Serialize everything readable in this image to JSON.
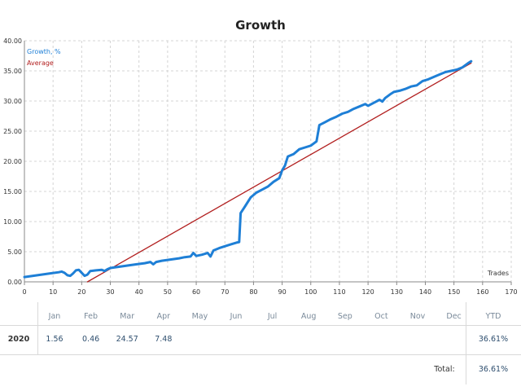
{
  "chart_data": {
    "type": "line",
    "title": "Growth",
    "xlabel": "Trades",
    "ylabel": "",
    "xlim": [
      0,
      170
    ],
    "ylim": [
      0,
      40
    ],
    "x_ticks": [
      "0",
      "10",
      "20",
      "30",
      "40",
      "50",
      "60",
      "70",
      "80",
      "90",
      "100",
      "110",
      "120",
      "130",
      "140",
      "150",
      "160",
      "170"
    ],
    "y_ticks": [
      "0.00",
      "5.00",
      "10.00",
      "15.00",
      "20.00",
      "25.00",
      "30.00",
      "35.00",
      "40.00"
    ],
    "grid": true,
    "legend_position": "top-left",
    "series": [
      {
        "name": "Growth, %",
        "color": "#1e7fd6",
        "points": [
          [
            0,
            0.8
          ],
          [
            3,
            1.0
          ],
          [
            6,
            1.2
          ],
          [
            9,
            1.4
          ],
          [
            12,
            1.6
          ],
          [
            13,
            1.7
          ],
          [
            14,
            1.5
          ],
          [
            15,
            1.1
          ],
          [
            16,
            1.0
          ],
          [
            17,
            1.4
          ],
          [
            18,
            1.9
          ],
          [
            19,
            2.0
          ],
          [
            20,
            1.5
          ],
          [
            21,
            1.0
          ],
          [
            22,
            1.2
          ],
          [
            23,
            1.8
          ],
          [
            25,
            1.9
          ],
          [
            27,
            2.0
          ],
          [
            28,
            1.8
          ],
          [
            29,
            2.1
          ],
          [
            30,
            2.3
          ],
          [
            33,
            2.5
          ],
          [
            36,
            2.7
          ],
          [
            39,
            2.9
          ],
          [
            42,
            3.1
          ],
          [
            44,
            3.3
          ],
          [
            45,
            2.9
          ],
          [
            46,
            3.3
          ],
          [
            48,
            3.5
          ],
          [
            51,
            3.7
          ],
          [
            54,
            3.9
          ],
          [
            56,
            4.1
          ],
          [
            58,
            4.2
          ],
          [
            59,
            4.8
          ],
          [
            60,
            4.3
          ],
          [
            62,
            4.5
          ],
          [
            64,
            4.8
          ],
          [
            65,
            4.2
          ],
          [
            66,
            5.2
          ],
          [
            68,
            5.6
          ],
          [
            70,
            5.9
          ],
          [
            72,
            6.2
          ],
          [
            74,
            6.5
          ],
          [
            75,
            6.6
          ],
          [
            75.5,
            11.4
          ],
          [
            77,
            12.5
          ],
          [
            79,
            14.0
          ],
          [
            81,
            14.8
          ],
          [
            83,
            15.3
          ],
          [
            85,
            15.8
          ],
          [
            87,
            16.6
          ],
          [
            89,
            17.2
          ],
          [
            90,
            18.5
          ],
          [
            91,
            19.3
          ],
          [
            92,
            20.8
          ],
          [
            94,
            21.2
          ],
          [
            96,
            22.0
          ],
          [
            98,
            22.3
          ],
          [
            100,
            22.6
          ],
          [
            102,
            23.3
          ],
          [
            103,
            26.0
          ],
          [
            105,
            26.5
          ],
          [
            107,
            27.0
          ],
          [
            109,
            27.4
          ],
          [
            111,
            27.9
          ],
          [
            113,
            28.2
          ],
          [
            115,
            28.7
          ],
          [
            117,
            29.1
          ],
          [
            119,
            29.5
          ],
          [
            120,
            29.2
          ],
          [
            122,
            29.7
          ],
          [
            124,
            30.2
          ],
          [
            125,
            29.9
          ],
          [
            126,
            30.5
          ],
          [
            128,
            31.2
          ],
          [
            129,
            31.5
          ],
          [
            131,
            31.7
          ],
          [
            133,
            32.0
          ],
          [
            135,
            32.4
          ],
          [
            137,
            32.6
          ],
          [
            139,
            33.3
          ],
          [
            141,
            33.6
          ],
          [
            143,
            34.0
          ],
          [
            145,
            34.4
          ],
          [
            147,
            34.8
          ],
          [
            149,
            35.0
          ],
          [
            151,
            35.2
          ],
          [
            153,
            35.6
          ],
          [
            155,
            36.3
          ],
          [
            156,
            36.6
          ]
        ]
      },
      {
        "name": "Average",
        "color": "#b21f1f",
        "points": [
          [
            22,
            0.0
          ],
          [
            156,
            36.3
          ]
        ]
      }
    ]
  },
  "results": {
    "header": [
      "Jan",
      "Feb",
      "Mar",
      "Apr",
      "May",
      "Jun",
      "Jul",
      "Aug",
      "Sep",
      "Oct",
      "Nov",
      "Dec"
    ],
    "ytd_label": "YTD",
    "year": "2020",
    "values": [
      "1.56",
      "0.46",
      "24.57",
      "7.48",
      "",
      "",
      "",
      "",
      "",
      "",
      "",
      ""
    ],
    "ytd_value": "36.61%",
    "total_label": "Total:",
    "total_value": "36.61%"
  }
}
